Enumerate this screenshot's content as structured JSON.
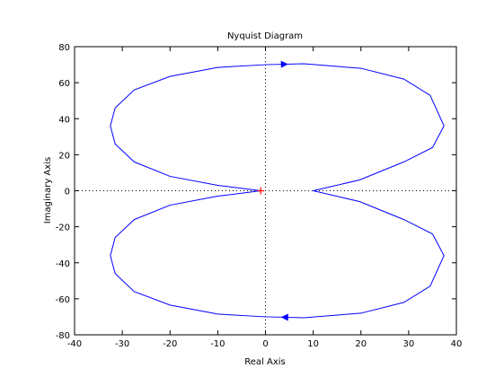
{
  "chart_data": {
    "type": "line",
    "title": "Nyquist Diagram",
    "x_label": "Real Axis",
    "y_label": "Imaginary Axis",
    "xlim": [
      -40,
      40
    ],
    "xticks": [
      -40,
      -30,
      -20,
      -10,
      0,
      10,
      20,
      30,
      40
    ],
    "ylim": [
      -80,
      80
    ],
    "yticks": [
      -80,
      -60,
      -40,
      -20,
      0,
      20,
      40,
      60,
      80
    ],
    "grid": false,
    "critical_point": [
      -1,
      0
    ],
    "series": [
      {
        "color": "#0000ff",
        "x": [
          -1,
          -3,
          -10,
          -20,
          -27.5,
          -31.5,
          -32.5,
          -31.5,
          -27.5,
          -20,
          -10,
          0,
          8,
          20,
          29,
          34.5,
          37.4,
          35,
          29,
          19.7,
          10,
          19.7,
          29,
          35,
          37.4,
          34.5,
          29,
          20,
          8,
          0,
          -10,
          -20,
          -27.5,
          -31.5,
          -32.5,
          -31.5,
          -27.5,
          -20,
          -10,
          -3,
          -1
        ],
        "y": [
          0,
          0.7,
          3,
          8,
          16,
          26,
          36,
          46,
          56,
          63.5,
          68.5,
          70,
          70.5,
          68,
          62,
          53,
          36,
          24,
          16,
          6,
          0,
          -6,
          -16,
          -24,
          -36,
          -53,
          -62,
          -68,
          -70.5,
          -70,
          -68.5,
          -63.5,
          -56,
          -46,
          -36,
          -26,
          -16,
          -8,
          -3,
          -0.7,
          0
        ]
      }
    ]
  }
}
